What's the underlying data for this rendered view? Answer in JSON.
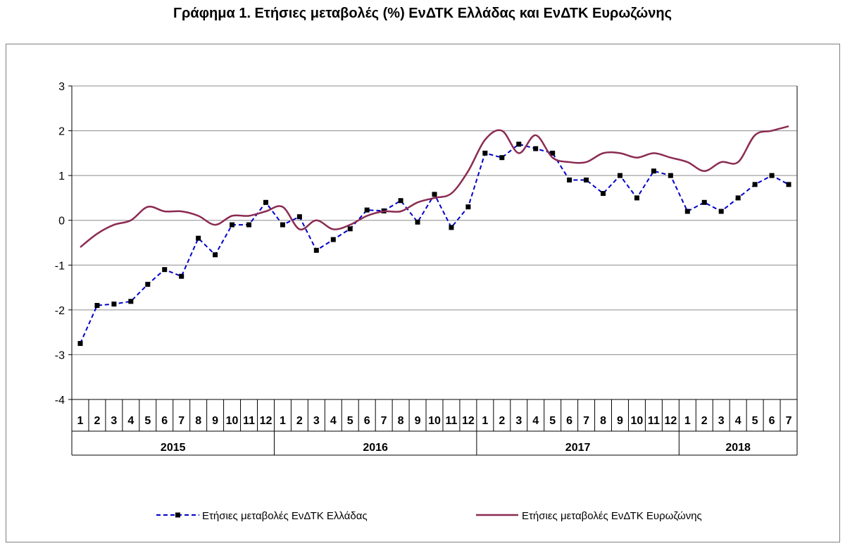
{
  "chart_data": {
    "type": "line",
    "title": "Γράφημα 1. Ετήσιες μεταβολές (%) ΕνΔΤΚ Ελλάδας και ΕνΔΤΚ Ευρωζώνης",
    "ylim": [
      -4,
      3
    ],
    "yticks": [
      3,
      2,
      1,
      0,
      -1,
      -2,
      -3,
      -4
    ],
    "grid": true,
    "legend_position": "bottom",
    "years": [
      {
        "label": "2015",
        "months": 12
      },
      {
        "label": "2016",
        "months": 12
      },
      {
        "label": "2017",
        "months": 12
      },
      {
        "label": "2018",
        "months": 7
      }
    ],
    "month_labels": [
      "1",
      "2",
      "3",
      "4",
      "5",
      "6",
      "7",
      "8",
      "9",
      "10",
      "11",
      "12",
      "1",
      "2",
      "3",
      "4",
      "5",
      "6",
      "7",
      "8",
      "9",
      "10",
      "11",
      "12",
      "1",
      "2",
      "3",
      "4",
      "5",
      "6",
      "7",
      "8",
      "9",
      "10",
      "11",
      "12",
      "1",
      "2",
      "3",
      "4",
      "5",
      "6",
      "7"
    ],
    "series": [
      {
        "name": "Ετήσιες μεταβολές ΕνΔΤΚ Ελλάδας",
        "color": "#0000cc",
        "style": "dashed-markers",
        "values": [
          -2.75,
          -1.9,
          -1.87,
          -1.81,
          -1.43,
          -1.1,
          -1.25,
          -0.4,
          -0.77,
          -0.1,
          -0.1,
          0.4,
          -0.1,
          0.08,
          -0.67,
          -0.43,
          -0.19,
          0.23,
          0.21,
          0.44,
          -0.04,
          0.58,
          -0.16,
          0.3,
          1.5,
          1.4,
          1.7,
          1.6,
          1.5,
          0.9,
          0.9,
          0.6,
          1.0,
          0.5,
          1.1,
          1.0,
          0.2,
          0.4,
          0.2,
          0.5,
          0.8,
          1.0,
          0.8
        ]
      },
      {
        "name": "Ετήσιες μεταβολές ΕνΔΤΚ Ευρωζώνης",
        "color": "#8b2b52",
        "style": "smooth",
        "values": [
          -0.6,
          -0.3,
          -0.1,
          0.0,
          0.3,
          0.2,
          0.2,
          0.1,
          -0.1,
          0.1,
          0.1,
          0.2,
          0.3,
          -0.2,
          0.0,
          -0.2,
          -0.1,
          0.1,
          0.2,
          0.2,
          0.4,
          0.5,
          0.6,
          1.1,
          1.8,
          2.0,
          1.5,
          1.9,
          1.4,
          1.3,
          1.3,
          1.5,
          1.5,
          1.4,
          1.5,
          1.4,
          1.3,
          1.1,
          1.3,
          1.3,
          1.9,
          2.0,
          2.1
        ]
      }
    ]
  }
}
